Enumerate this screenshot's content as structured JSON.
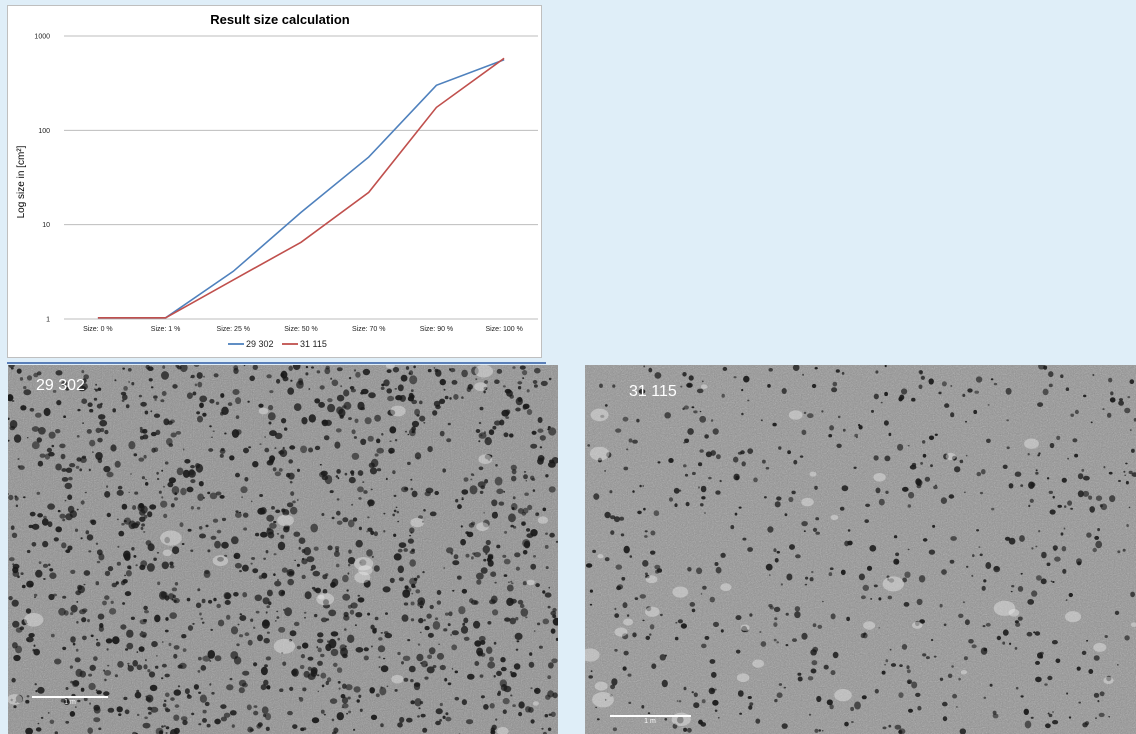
{
  "chart_data": {
    "type": "line",
    "title": "Result size calculation",
    "ylabel": "Log size in [cm²]",
    "xlabel": "",
    "yscale": "log",
    "ylim": [
      1,
      1000
    ],
    "yticks": [
      "1",
      "10",
      "100",
      "1000"
    ],
    "categories": [
      "Size: 0 %",
      "Size: 1 %",
      "Size: 25 %",
      "Size: 50 %",
      "Size: 70 %",
      "Size: 90 %",
      "Size: 100 %"
    ],
    "series": [
      {
        "name": "29 302",
        "color": "#4f81bd",
        "values": [
          1.03,
          1.03,
          3.2,
          13.5,
          52,
          300,
          560
        ]
      },
      {
        "name": "31 115",
        "color": "#c0504d",
        "values": [
          1.03,
          1.03,
          2.6,
          6.5,
          22,
          175,
          580
        ]
      }
    ],
    "grid": "horizontal",
    "legend": "bottom"
  },
  "photos": {
    "left": {
      "label": "29 302",
      "scale_text": "1 m"
    },
    "right": {
      "label": "31 115",
      "scale_text": "1 m"
    }
  }
}
